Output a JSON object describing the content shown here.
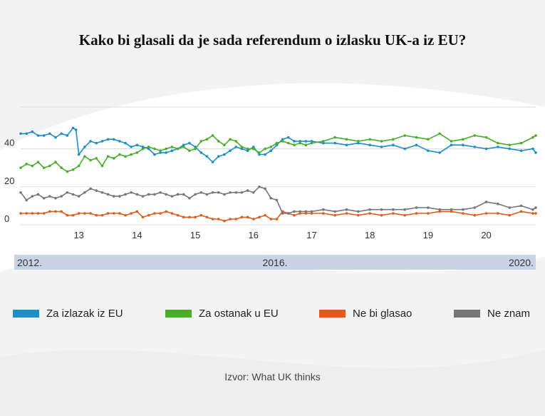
{
  "colors": {
    "exit": "#1b8fc6",
    "remain": "#4aae2b",
    "not_vote": "#e25b1d",
    "dont_know": "#777777",
    "timeline_bar": "#c9d3e6"
  },
  "chart_data": {
    "type": "line",
    "title": "Kako bi glasali da je sada referendum o izlasku UK-a iz EU?",
    "source": "Izvor: What UK thinks",
    "x_ticks": [
      "13",
      "14",
      "15",
      "16",
      "17",
      "18",
      "19",
      "20"
    ],
    "x_tick_values": [
      2013,
      2014,
      2015,
      2016,
      2017,
      2018,
      2019,
      2020
    ],
    "xlim": [
      2012.0,
      2020.85
    ],
    "y_ticks": [
      "0",
      "20",
      "40"
    ],
    "y_tick_values": [
      0,
      20,
      40
    ],
    "ylim": [
      0,
      62
    ],
    "grid": "horizontal",
    "legend_position": "bottom",
    "timeline_labels": [
      "2012.",
      "2016.",
      "2020."
    ],
    "series": [
      {
        "name": "Za izlazak iz EU",
        "color_key": "exit",
        "points": [
          [
            2012.0,
            48
          ],
          [
            2012.1,
            48
          ],
          [
            2012.2,
            49
          ],
          [
            2012.3,
            47
          ],
          [
            2012.4,
            47
          ],
          [
            2012.5,
            48
          ],
          [
            2012.6,
            46
          ],
          [
            2012.7,
            48
          ],
          [
            2012.8,
            47
          ],
          [
            2012.9,
            51
          ],
          [
            2012.95,
            50
          ],
          [
            2013.0,
            37
          ],
          [
            2013.1,
            41
          ],
          [
            2013.2,
            44
          ],
          [
            2013.3,
            43
          ],
          [
            2013.4,
            44
          ],
          [
            2013.5,
            45
          ],
          [
            2013.6,
            45
          ],
          [
            2013.7,
            44
          ],
          [
            2013.8,
            43
          ],
          [
            2013.9,
            41
          ],
          [
            2014.0,
            42
          ],
          [
            2014.1,
            41
          ],
          [
            2014.2,
            40
          ],
          [
            2014.3,
            37
          ],
          [
            2014.4,
            38
          ],
          [
            2014.5,
            38
          ],
          [
            2014.6,
            39
          ],
          [
            2014.7,
            40
          ],
          [
            2014.8,
            42
          ],
          [
            2014.9,
            43
          ],
          [
            2015.0,
            41
          ],
          [
            2015.1,
            38
          ],
          [
            2015.2,
            36
          ],
          [
            2015.3,
            33
          ],
          [
            2015.4,
            36
          ],
          [
            2015.5,
            37
          ],
          [
            2015.6,
            39
          ],
          [
            2015.7,
            41
          ],
          [
            2015.8,
            40
          ],
          [
            2015.9,
            39
          ],
          [
            2016.0,
            41
          ],
          [
            2016.1,
            37
          ],
          [
            2016.2,
            37
          ],
          [
            2016.3,
            39
          ],
          [
            2016.4,
            42
          ],
          [
            2016.5,
            45
          ],
          [
            2016.6,
            46
          ],
          [
            2016.7,
            44
          ],
          [
            2016.8,
            44
          ],
          [
            2016.9,
            44
          ],
          [
            2017.0,
            44
          ],
          [
            2017.2,
            43
          ],
          [
            2017.4,
            43
          ],
          [
            2017.6,
            42
          ],
          [
            2017.8,
            43
          ],
          [
            2018.0,
            42
          ],
          [
            2018.2,
            41
          ],
          [
            2018.4,
            42
          ],
          [
            2018.6,
            40
          ],
          [
            2018.8,
            42
          ],
          [
            2019.0,
            39
          ],
          [
            2019.2,
            38
          ],
          [
            2019.4,
            42
          ],
          [
            2019.6,
            42
          ],
          [
            2019.8,
            41
          ],
          [
            2020.0,
            40
          ],
          [
            2020.2,
            41
          ],
          [
            2020.4,
            40
          ],
          [
            2020.6,
            39
          ],
          [
            2020.8,
            40
          ],
          [
            2020.85,
            38
          ]
        ]
      },
      {
        "name": "Za ostanak u EU",
        "color_key": "remain",
        "points": [
          [
            2012.0,
            30
          ],
          [
            2012.1,
            32
          ],
          [
            2012.2,
            31
          ],
          [
            2012.3,
            33
          ],
          [
            2012.4,
            30
          ],
          [
            2012.5,
            31
          ],
          [
            2012.6,
            33
          ],
          [
            2012.7,
            30
          ],
          [
            2012.8,
            28
          ],
          [
            2012.9,
            29
          ],
          [
            2013.0,
            31
          ],
          [
            2013.1,
            36
          ],
          [
            2013.2,
            34
          ],
          [
            2013.3,
            35
          ],
          [
            2013.4,
            31
          ],
          [
            2013.5,
            36
          ],
          [
            2013.6,
            35
          ],
          [
            2013.7,
            37
          ],
          [
            2013.8,
            36
          ],
          [
            2013.9,
            37
          ],
          [
            2014.0,
            38
          ],
          [
            2014.1,
            40
          ],
          [
            2014.2,
            41
          ],
          [
            2014.3,
            40
          ],
          [
            2014.4,
            39
          ],
          [
            2014.5,
            40
          ],
          [
            2014.6,
            41
          ],
          [
            2014.7,
            40
          ],
          [
            2014.8,
            41
          ],
          [
            2014.9,
            39
          ],
          [
            2015.0,
            40
          ],
          [
            2015.1,
            44
          ],
          [
            2015.2,
            45
          ],
          [
            2015.3,
            47
          ],
          [
            2015.4,
            44
          ],
          [
            2015.5,
            42
          ],
          [
            2015.6,
            45
          ],
          [
            2015.7,
            44
          ],
          [
            2015.8,
            41
          ],
          [
            2015.9,
            40
          ],
          [
            2016.0,
            40
          ],
          [
            2016.1,
            38
          ],
          [
            2016.2,
            40
          ],
          [
            2016.3,
            41
          ],
          [
            2016.4,
            43
          ],
          [
            2016.5,
            44
          ],
          [
            2016.6,
            43
          ],
          [
            2016.7,
            42
          ],
          [
            2016.8,
            43
          ],
          [
            2016.9,
            42
          ],
          [
            2017.0,
            43
          ],
          [
            2017.2,
            44
          ],
          [
            2017.4,
            46
          ],
          [
            2017.6,
            45
          ],
          [
            2017.8,
            44
          ],
          [
            2018.0,
            45
          ],
          [
            2018.2,
            44
          ],
          [
            2018.4,
            45
          ],
          [
            2018.6,
            47
          ],
          [
            2018.8,
            46
          ],
          [
            2019.0,
            45
          ],
          [
            2019.2,
            48
          ],
          [
            2019.4,
            44
          ],
          [
            2019.6,
            45
          ],
          [
            2019.8,
            47
          ],
          [
            2020.0,
            46
          ],
          [
            2020.2,
            43
          ],
          [
            2020.4,
            42
          ],
          [
            2020.6,
            43
          ],
          [
            2020.8,
            46
          ],
          [
            2020.85,
            47
          ]
        ]
      },
      {
        "name": "Ne bi glasao",
        "color_key": "not_vote",
        "points": [
          [
            2012.0,
            6
          ],
          [
            2012.1,
            6
          ],
          [
            2012.2,
            6
          ],
          [
            2012.3,
            6
          ],
          [
            2012.4,
            6
          ],
          [
            2012.5,
            7
          ],
          [
            2012.6,
            7
          ],
          [
            2012.7,
            7
          ],
          [
            2012.8,
            5
          ],
          [
            2012.9,
            5
          ],
          [
            2013.0,
            6
          ],
          [
            2013.1,
            6
          ],
          [
            2013.2,
            6
          ],
          [
            2013.3,
            5
          ],
          [
            2013.4,
            5
          ],
          [
            2013.5,
            6
          ],
          [
            2013.6,
            6
          ],
          [
            2013.7,
            6
          ],
          [
            2013.8,
            5
          ],
          [
            2013.9,
            6
          ],
          [
            2014.0,
            7
          ],
          [
            2014.1,
            4
          ],
          [
            2014.2,
            5
          ],
          [
            2014.3,
            6
          ],
          [
            2014.4,
            6
          ],
          [
            2014.5,
            7
          ],
          [
            2014.6,
            6
          ],
          [
            2014.7,
            5
          ],
          [
            2014.8,
            4
          ],
          [
            2014.9,
            4
          ],
          [
            2015.0,
            4
          ],
          [
            2015.1,
            5
          ],
          [
            2015.2,
            4
          ],
          [
            2015.3,
            3
          ],
          [
            2015.4,
            3
          ],
          [
            2015.5,
            2
          ],
          [
            2015.6,
            3
          ],
          [
            2015.7,
            3
          ],
          [
            2015.8,
            4
          ],
          [
            2015.9,
            4
          ],
          [
            2016.0,
            3
          ],
          [
            2016.1,
            4
          ],
          [
            2016.2,
            5
          ],
          [
            2016.3,
            3
          ],
          [
            2016.4,
            3
          ],
          [
            2016.5,
            7
          ],
          [
            2016.6,
            6
          ],
          [
            2016.7,
            5
          ],
          [
            2016.8,
            6
          ],
          [
            2016.9,
            6
          ],
          [
            2017.0,
            6
          ],
          [
            2017.2,
            6
          ],
          [
            2017.4,
            5
          ],
          [
            2017.6,
            6
          ],
          [
            2017.8,
            5
          ],
          [
            2018.0,
            6
          ],
          [
            2018.2,
            5
          ],
          [
            2018.4,
            6
          ],
          [
            2018.6,
            5
          ],
          [
            2018.8,
            6
          ],
          [
            2019.0,
            6
          ],
          [
            2019.2,
            7
          ],
          [
            2019.4,
            7
          ],
          [
            2019.6,
            6
          ],
          [
            2019.8,
            5
          ],
          [
            2020.0,
            6
          ],
          [
            2020.2,
            6
          ],
          [
            2020.4,
            5
          ],
          [
            2020.6,
            7
          ],
          [
            2020.8,
            6
          ],
          [
            2020.85,
            6
          ]
        ]
      },
      {
        "name": "Ne znam",
        "color_key": "dont_know",
        "points": [
          [
            2012.0,
            17
          ],
          [
            2012.1,
            13
          ],
          [
            2012.2,
            15
          ],
          [
            2012.3,
            16
          ],
          [
            2012.4,
            14
          ],
          [
            2012.5,
            15
          ],
          [
            2012.6,
            14
          ],
          [
            2012.7,
            15
          ],
          [
            2012.8,
            17
          ],
          [
            2012.9,
            16
          ],
          [
            2013.0,
            15
          ],
          [
            2013.1,
            17
          ],
          [
            2013.2,
            19
          ],
          [
            2013.3,
            18
          ],
          [
            2013.4,
            17
          ],
          [
            2013.5,
            16
          ],
          [
            2013.6,
            15
          ],
          [
            2013.7,
            15
          ],
          [
            2013.8,
            16
          ],
          [
            2013.9,
            17
          ],
          [
            2014.0,
            16
          ],
          [
            2014.1,
            15
          ],
          [
            2014.2,
            16
          ],
          [
            2014.3,
            16
          ],
          [
            2014.4,
            17
          ],
          [
            2014.5,
            16
          ],
          [
            2014.6,
            15
          ],
          [
            2014.7,
            16
          ],
          [
            2014.8,
            16
          ],
          [
            2014.9,
            14
          ],
          [
            2015.0,
            16
          ],
          [
            2015.1,
            17
          ],
          [
            2015.2,
            16
          ],
          [
            2015.3,
            17
          ],
          [
            2015.4,
            17
          ],
          [
            2015.5,
            16
          ],
          [
            2015.6,
            17
          ],
          [
            2015.7,
            17
          ],
          [
            2015.8,
            17
          ],
          [
            2015.9,
            18
          ],
          [
            2016.0,
            17
          ],
          [
            2016.1,
            20
          ],
          [
            2016.2,
            19
          ],
          [
            2016.3,
            14
          ],
          [
            2016.4,
            13
          ],
          [
            2016.5,
            6
          ],
          [
            2016.6,
            6
          ],
          [
            2016.7,
            7
          ],
          [
            2016.8,
            7
          ],
          [
            2016.9,
            7
          ],
          [
            2017.0,
            7
          ],
          [
            2017.2,
            8
          ],
          [
            2017.4,
            7
          ],
          [
            2017.6,
            8
          ],
          [
            2017.8,
            7
          ],
          [
            2018.0,
            8
          ],
          [
            2018.2,
            8
          ],
          [
            2018.4,
            8
          ],
          [
            2018.6,
            8
          ],
          [
            2018.8,
            9
          ],
          [
            2019.0,
            9
          ],
          [
            2019.2,
            8
          ],
          [
            2019.4,
            8
          ],
          [
            2019.6,
            8
          ],
          [
            2019.8,
            9
          ],
          [
            2020.0,
            12
          ],
          [
            2020.2,
            11
          ],
          [
            2020.4,
            9
          ],
          [
            2020.6,
            10
          ],
          [
            2020.8,
            8
          ],
          [
            2020.85,
            9
          ]
        ]
      }
    ]
  }
}
